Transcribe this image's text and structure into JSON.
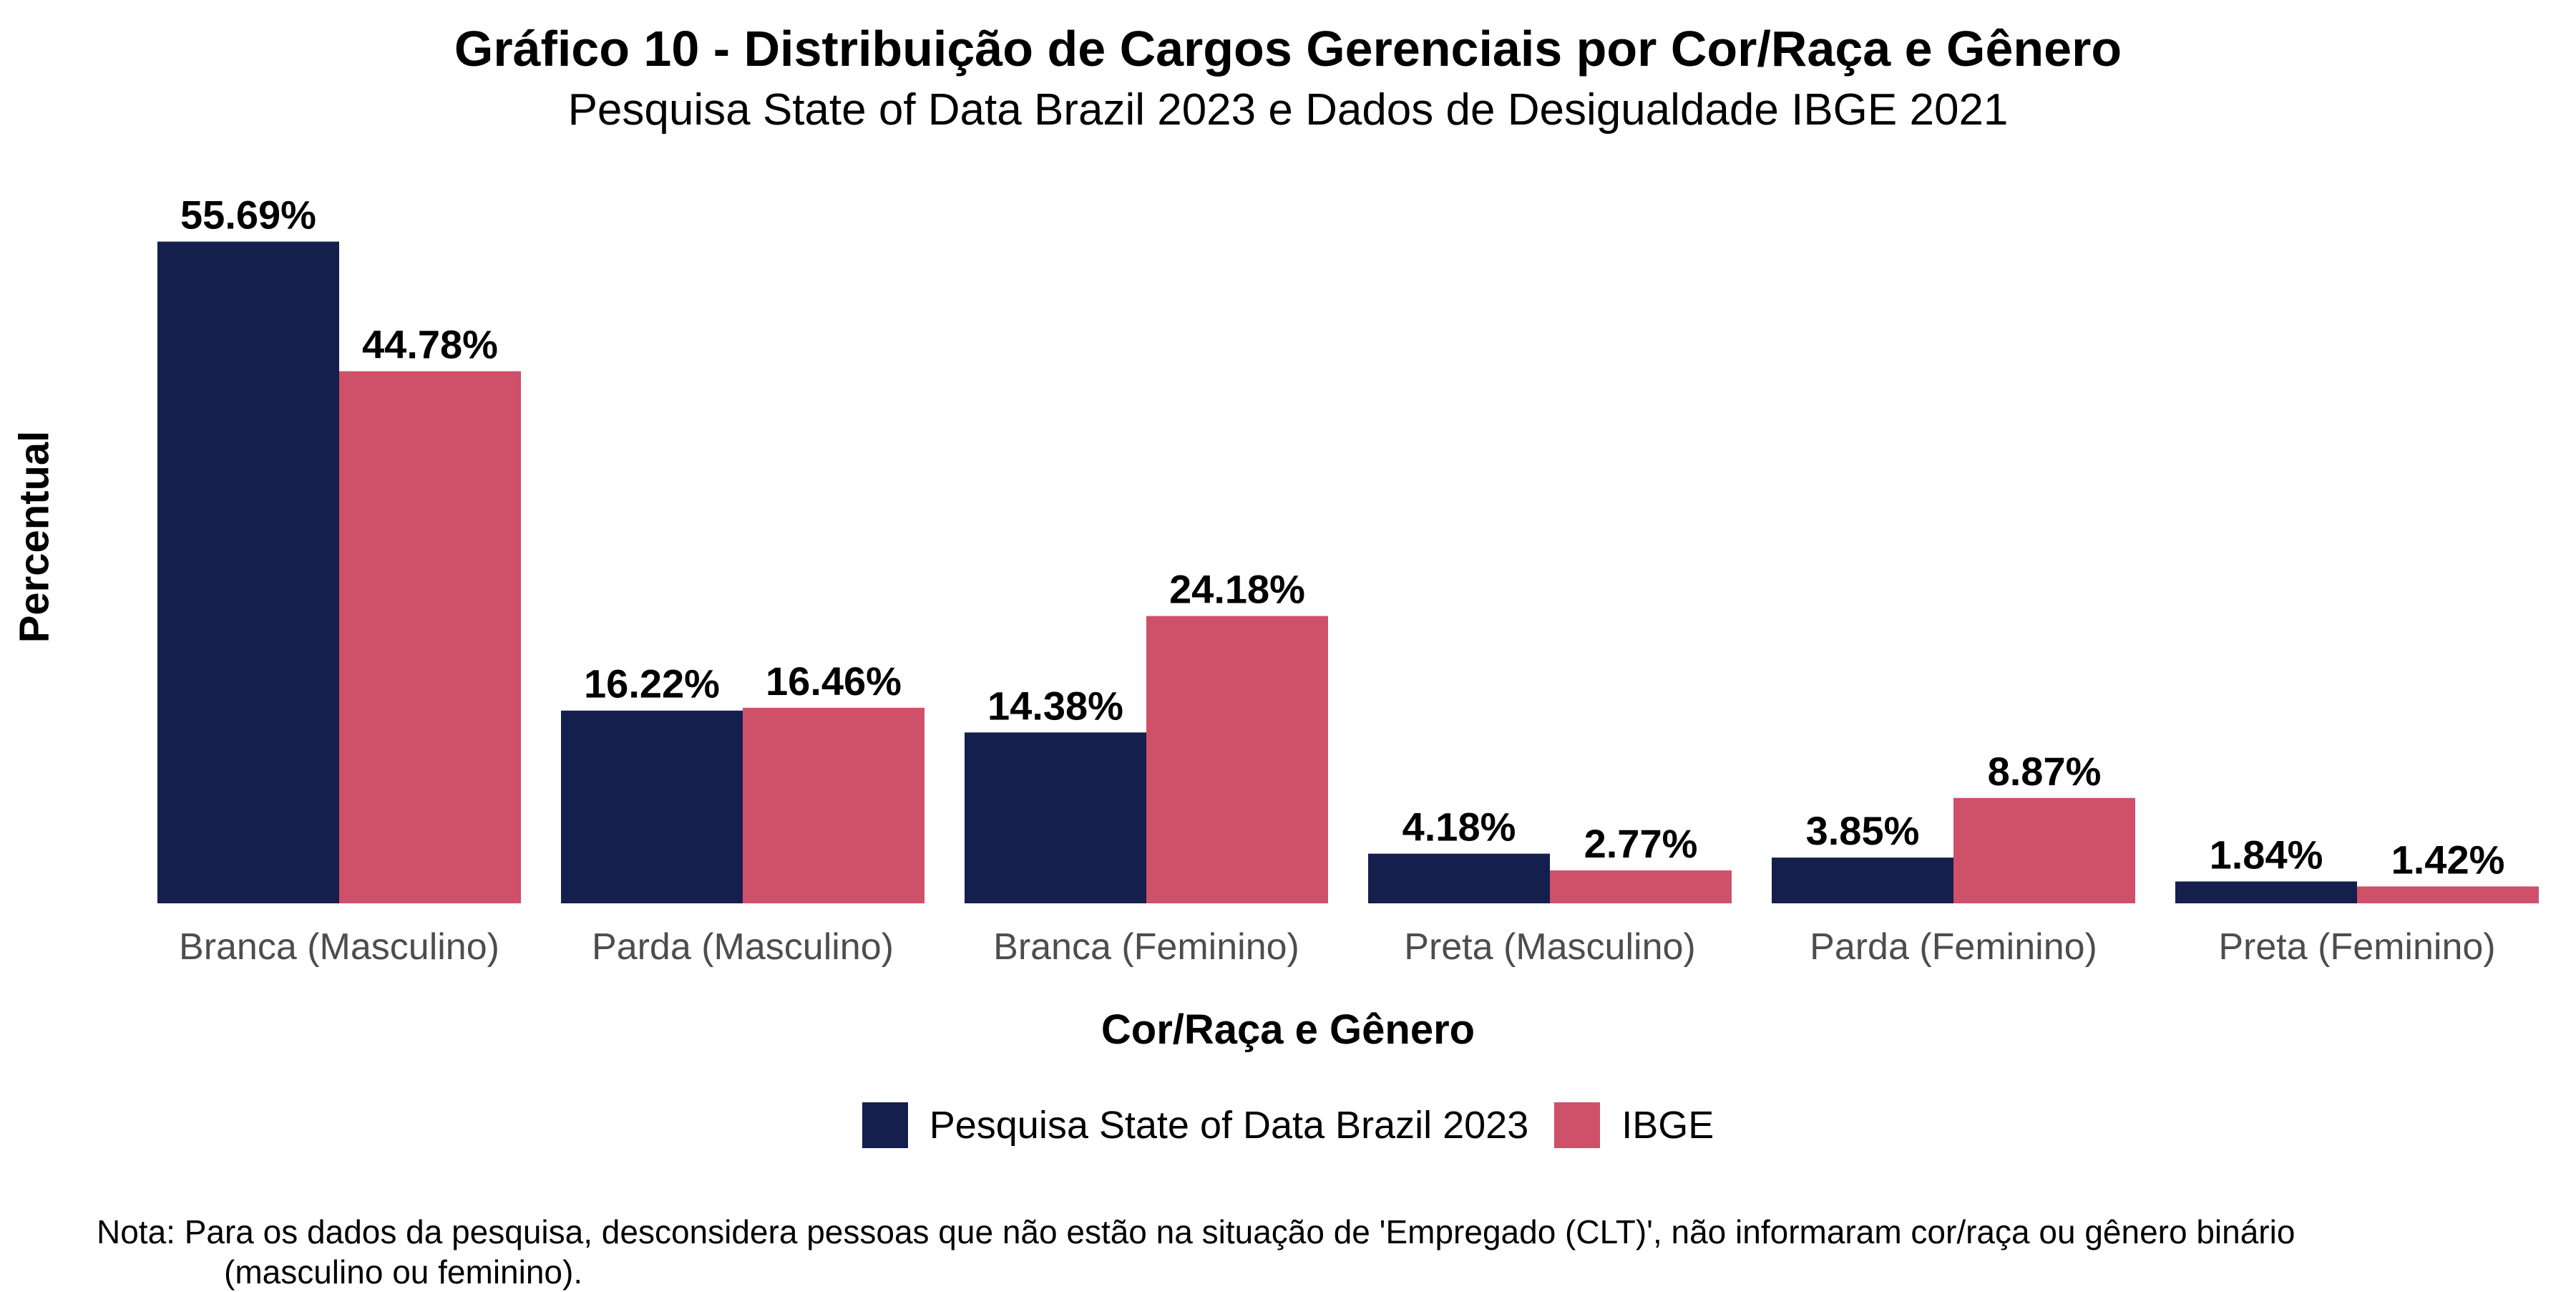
{
  "chart_data": {
    "type": "bar",
    "title": "Gráfico 10 - Distribuição de Cargos Gerenciais por Cor/Raça e Gênero",
    "subtitle": "Pesquisa State of Data Brazil 2023 e Dados de Desigualdade IBGE 2021",
    "xlabel": "Cor/Raça e Gênero",
    "ylabel": "Percentual",
    "ylim": [
      0,
      57
    ],
    "grid": false,
    "legend_position": "bottom",
    "categories": [
      "Branca (Masculino)",
      "Parda (Masculino)",
      "Branca (Feminino)",
      "Preta (Masculino)",
      "Parda (Feminino)",
      "Preta (Feminino)"
    ],
    "series": [
      {
        "name": "Pesquisa State of Data Brazil 2023",
        "color": "#141f4d",
        "values": [
          55.69,
          16.22,
          14.38,
          4.18,
          3.85,
          1.84
        ],
        "labels": [
          "55.69%",
          "16.22%",
          "14.38%",
          "4.18%",
          "3.85%",
          "1.84%"
        ]
      },
      {
        "name": "IBGE",
        "color": "#cf5069",
        "values": [
          44.78,
          16.46,
          24.18,
          2.77,
          8.87,
          1.42
        ],
        "labels": [
          "44.78%",
          "16.46%",
          "24.18%",
          "2.77%",
          "8.87%",
          "1.42%"
        ]
      }
    ],
    "note": {
      "line1": "Nota: Para os dados da pesquisa, desconsidera pessoas que não estão na situação de 'Empregado (CLT)', não informaram cor/raça ou gênero binário",
      "line2": "(masculino ou feminino)."
    }
  }
}
